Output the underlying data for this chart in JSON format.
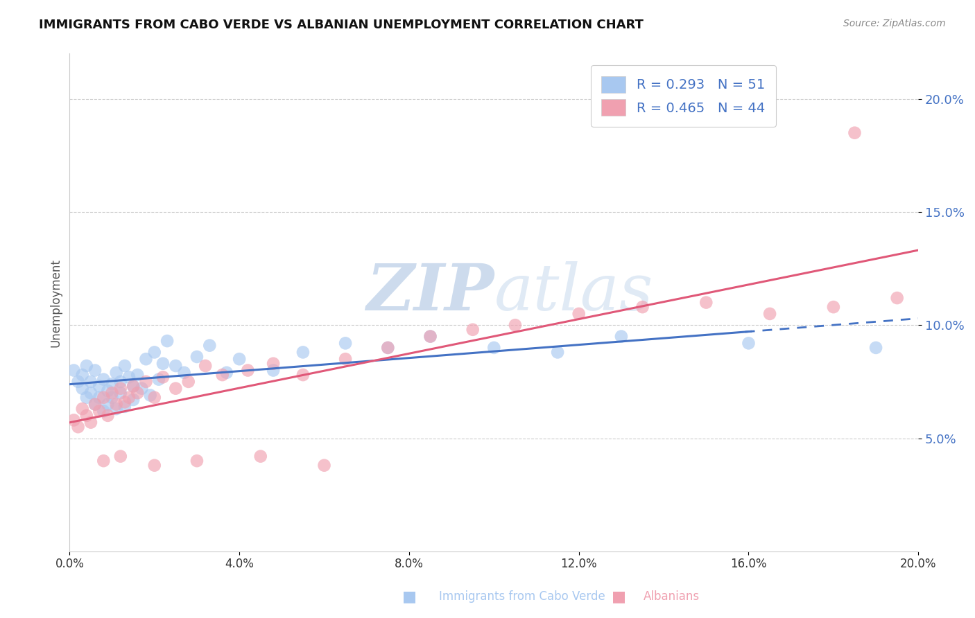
{
  "title": "IMMIGRANTS FROM CABO VERDE VS ALBANIAN UNEMPLOYMENT CORRELATION CHART",
  "source": "Source: ZipAtlas.com",
  "ylabel": "Unemployment",
  "xlim": [
    0.0,
    0.2
  ],
  "ylim": [
    0.0,
    0.22
  ],
  "yticks": [
    0.05,
    0.1,
    0.15,
    0.2
  ],
  "xticks": [
    0.0,
    0.04,
    0.08,
    0.12,
    0.16,
    0.2
  ],
  "blue_R": 0.293,
  "blue_N": 51,
  "pink_R": 0.465,
  "pink_N": 44,
  "blue_color": "#a8c8f0",
  "pink_color": "#f0a0b0",
  "blue_line_color": "#4472c4",
  "pink_line_color": "#e05878",
  "watermark_zip": "ZIP",
  "watermark_atlas": "atlas",
  "legend_label_blue": "Immigrants from Cabo Verde",
  "legend_label_pink": "Albanians",
  "blue_scatter_x": [
    0.001,
    0.002,
    0.003,
    0.003,
    0.004,
    0.004,
    0.005,
    0.005,
    0.006,
    0.006,
    0.007,
    0.007,
    0.008,
    0.008,
    0.009,
    0.009,
    0.01,
    0.01,
    0.011,
    0.011,
    0.012,
    0.012,
    0.013,
    0.013,
    0.014,
    0.015,
    0.015,
    0.016,
    0.017,
    0.018,
    0.019,
    0.02,
    0.021,
    0.022,
    0.023,
    0.025,
    0.027,
    0.03,
    0.033,
    0.037,
    0.04,
    0.048,
    0.055,
    0.065,
    0.075,
    0.085,
    0.1,
    0.115,
    0.13,
    0.16,
    0.19
  ],
  "blue_scatter_y": [
    0.08,
    0.075,
    0.078,
    0.072,
    0.068,
    0.082,
    0.07,
    0.075,
    0.065,
    0.08,
    0.073,
    0.068,
    0.076,
    0.062,
    0.071,
    0.065,
    0.074,
    0.068,
    0.079,
    0.063,
    0.075,
    0.07,
    0.082,
    0.064,
    0.077,
    0.073,
    0.067,
    0.078,
    0.072,
    0.085,
    0.069,
    0.088,
    0.076,
    0.083,
    0.093,
    0.082,
    0.079,
    0.086,
    0.091,
    0.079,
    0.085,
    0.08,
    0.088,
    0.092,
    0.09,
    0.095,
    0.09,
    0.088,
    0.095,
    0.092,
    0.09
  ],
  "pink_scatter_x": [
    0.001,
    0.002,
    0.003,
    0.004,
    0.005,
    0.006,
    0.007,
    0.008,
    0.009,
    0.01,
    0.011,
    0.012,
    0.013,
    0.014,
    0.015,
    0.016,
    0.018,
    0.02,
    0.022,
    0.025,
    0.028,
    0.032,
    0.036,
    0.042,
    0.048,
    0.055,
    0.065,
    0.075,
    0.085,
    0.095,
    0.105,
    0.12,
    0.135,
    0.15,
    0.165,
    0.18,
    0.195,
    0.008,
    0.012,
    0.02,
    0.03,
    0.045,
    0.06,
    0.185
  ],
  "pink_scatter_y": [
    0.058,
    0.055,
    0.063,
    0.06,
    0.057,
    0.065,
    0.062,
    0.068,
    0.06,
    0.07,
    0.065,
    0.072,
    0.066,
    0.068,
    0.073,
    0.07,
    0.075,
    0.068,
    0.077,
    0.072,
    0.075,
    0.082,
    0.078,
    0.08,
    0.083,
    0.078,
    0.085,
    0.09,
    0.095,
    0.098,
    0.1,
    0.105,
    0.108,
    0.11,
    0.105,
    0.108,
    0.112,
    0.04,
    0.042,
    0.038,
    0.04,
    0.042,
    0.038,
    0.185
  ],
  "blue_line_x_solid_end": 0.16,
  "blue_line_start_y": 0.068,
  "blue_line_end_y": 0.093
}
